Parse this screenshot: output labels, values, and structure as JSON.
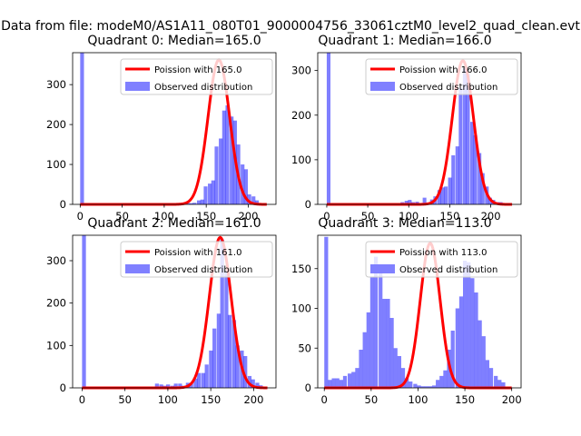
{
  "figure": {
    "suptitle": "Data from file: modeM0/AS1A11_080T01_9000004756_33061cztM0_level2_quad_clean.evt"
  },
  "chart_data": [
    {
      "type": "bar",
      "title": "Quadrant 0: Median=165.0",
      "xlabel": "",
      "ylabel": "",
      "xlim": [
        -9,
        233
      ],
      "ylim": [
        0,
        380
      ],
      "xticks": [
        0,
        50,
        100,
        150,
        200
      ],
      "yticks": [
        0,
        100,
        200,
        300
      ],
      "legend_position": "upper right",
      "legend": [
        {
          "label": "Poission with 165.0",
          "color": "#ff0000",
          "kind": "line"
        },
        {
          "label": "Observed distribution",
          "color": "#8080ff",
          "kind": "patch"
        }
      ],
      "histogram": {
        "name": "Observed distribution",
        "color": "#0000ff",
        "alpha": 0.5,
        "bin_width": 4.5,
        "bins": [
          [
            0,
            380
          ],
          [
            90,
            1
          ],
          [
            105,
            1
          ],
          [
            112,
            1
          ],
          [
            118,
            1
          ],
          [
            122,
            2
          ],
          [
            126,
            3
          ],
          [
            130,
            3
          ],
          [
            134,
            4
          ],
          [
            139,
            10
          ],
          [
            143,
            12
          ],
          [
            147,
            45
          ],
          [
            152,
            52
          ],
          [
            156,
            60
          ],
          [
            160,
            145
          ],
          [
            165,
            165
          ],
          [
            169,
            235
          ],
          [
            173,
            248
          ],
          [
            178,
            220
          ],
          [
            182,
            210
          ],
          [
            186,
            150
          ],
          [
            191,
            100
          ],
          [
            195,
            88
          ],
          [
            199,
            25
          ],
          [
            204,
            20
          ],
          [
            208,
            10
          ],
          [
            213,
            2
          ],
          [
            217,
            1
          ]
        ]
      },
      "poisson": {
        "name": "Poission with 165.0",
        "color": "#ff0000",
        "mean": 165.0,
        "peak": 362,
        "x_range": [
          0,
          222
        ]
      }
    },
    {
      "type": "bar",
      "title": "Quadrant 1: Median=166.0",
      "xlabel": "",
      "ylabel": "",
      "xlim": [
        -11,
        237
      ],
      "ylim": [
        0,
        340
      ],
      "xticks": [
        0,
        50,
        100,
        150,
        200
      ],
      "yticks": [
        0,
        100,
        200,
        300
      ],
      "legend_position": "upper right",
      "legend": [
        {
          "label": "Poission with 166.0",
          "color": "#ff0000",
          "kind": "line"
        },
        {
          "label": "Observed distribution",
          "color": "#8080ff",
          "kind": "patch"
        }
      ],
      "histogram": {
        "name": "Observed distribution",
        "color": "#0000ff",
        "alpha": 0.5,
        "bin_width": 4.5,
        "bins": [
          [
            0,
            340
          ],
          [
            90,
            5
          ],
          [
            95,
            8
          ],
          [
            99,
            10
          ],
          [
            103,
            5
          ],
          [
            108,
            6
          ],
          [
            112,
            3
          ],
          [
            117,
            15
          ],
          [
            121,
            4
          ],
          [
            126,
            11
          ],
          [
            130,
            18
          ],
          [
            135,
            32
          ],
          [
            139,
            38
          ],
          [
            143,
            40
          ],
          [
            148,
            60
          ],
          [
            152,
            110
          ],
          [
            157,
            130
          ],
          [
            161,
            260
          ],
          [
            166,
            305
          ],
          [
            170,
            292
          ],
          [
            175,
            185
          ],
          [
            179,
            155
          ],
          [
            184,
            115
          ],
          [
            188,
            70
          ],
          [
            193,
            40
          ],
          [
            197,
            15
          ],
          [
            201,
            10
          ],
          [
            206,
            5
          ],
          [
            210,
            5
          ],
          [
            215,
            1
          ]
        ]
      },
      "poisson": {
        "name": "Poission with 166.0",
        "color": "#ff0000",
        "mean": 166.0,
        "peak": 322,
        "x_range": [
          0,
          226
        ]
      }
    },
    {
      "type": "bar",
      "title": "Quadrant 2: Median=161.0",
      "xlabel": "",
      "ylabel": "",
      "xlim": [
        -11,
        226
      ],
      "ylim": [
        0,
        360
      ],
      "xticks": [
        0,
        50,
        100,
        150,
        200
      ],
      "yticks": [
        0,
        100,
        200,
        300
      ],
      "legend_position": "upper right",
      "legend": [
        {
          "label": "Poission with 161.0",
          "color": "#ff0000",
          "kind": "line"
        },
        {
          "label": "Observed distribution",
          "color": "#8080ff",
          "kind": "patch"
        }
      ],
      "histogram": {
        "name": "Observed distribution",
        "color": "#0000ff",
        "alpha": 0.5,
        "bin_width": 4.5,
        "bins": [
          [
            0,
            360
          ],
          [
            85,
            10
          ],
          [
            90,
            8
          ],
          [
            94,
            5
          ],
          [
            98,
            8
          ],
          [
            103,
            5
          ],
          [
            107,
            10
          ],
          [
            112,
            10
          ],
          [
            116,
            5
          ],
          [
            121,
            12
          ],
          [
            125,
            10
          ],
          [
            130,
            22
          ],
          [
            134,
            35
          ],
          [
            139,
            35
          ],
          [
            143,
            55
          ],
          [
            148,
            88
          ],
          [
            152,
            140
          ],
          [
            157,
            175
          ],
          [
            161,
            350
          ],
          [
            166,
            275
          ],
          [
            170,
            172
          ],
          [
            175,
            160
          ],
          [
            179,
            100
          ],
          [
            184,
            88
          ],
          [
            188,
            75
          ],
          [
            193,
            28
          ],
          [
            197,
            20
          ],
          [
            202,
            12
          ],
          [
            206,
            6
          ],
          [
            211,
            3
          ]
        ]
      },
      "poisson": {
        "name": "Poission with 161.0",
        "color": "#ff0000",
        "mean": 161.0,
        "peak": 355,
        "x_range": [
          0,
          216
        ]
      }
    },
    {
      "type": "bar",
      "title": "Quadrant 3: Median=113.0",
      "xlabel": "",
      "ylabel": "",
      "xlim": [
        -7,
        210
      ],
      "ylim": [
        0,
        192
      ],
      "xticks": [
        0,
        50,
        100,
        150,
        200
      ],
      "yticks": [
        0,
        50,
        100,
        150
      ],
      "legend_position": "upper right",
      "legend": [
        {
          "label": "Poission with 113.0",
          "color": "#ff0000",
          "kind": "line"
        },
        {
          "label": "Observed distribution",
          "color": "#8080ff",
          "kind": "patch"
        }
      ],
      "histogram": {
        "name": "Observed distribution",
        "color": "#0000ff",
        "alpha": 0.5,
        "bin_width": 4.1,
        "bins": [
          [
            0,
            190
          ],
          [
            4,
            10
          ],
          [
            8,
            12
          ],
          [
            12,
            12
          ],
          [
            16,
            10
          ],
          [
            20,
            15
          ],
          [
            25,
            18
          ],
          [
            29,
            20
          ],
          [
            33,
            25
          ],
          [
            37,
            48
          ],
          [
            41,
            70
          ],
          [
            45,
            95
          ],
          [
            49,
            140
          ],
          [
            53,
            165
          ],
          [
            58,
            145
          ],
          [
            62,
            112
          ],
          [
            66,
            112
          ],
          [
            70,
            88
          ],
          [
            74,
            50
          ],
          [
            78,
            40
          ],
          [
            82,
            25
          ],
          [
            86,
            12
          ],
          [
            90,
            8
          ],
          [
            95,
            5
          ],
          [
            99,
            3
          ],
          [
            103,
            2
          ],
          [
            107,
            2
          ],
          [
            111,
            2
          ],
          [
            115,
            3
          ],
          [
            119,
            10
          ],
          [
            123,
            15
          ],
          [
            127,
            22
          ],
          [
            131,
            48
          ],
          [
            135,
            72
          ],
          [
            140,
            100
          ],
          [
            144,
            115
          ],
          [
            148,
            160
          ],
          [
            152,
            158
          ],
          [
            156,
            138
          ],
          [
            160,
            120
          ],
          [
            164,
            85
          ],
          [
            168,
            65
          ],
          [
            172,
            35
          ],
          [
            176,
            25
          ],
          [
            181,
            15
          ],
          [
            185,
            10
          ],
          [
            189,
            7
          ],
          [
            193,
            1
          ]
        ]
      },
      "poisson": {
        "name": "Poission with 113.0",
        "color": "#ff0000",
        "mean": 113.0,
        "peak": 182,
        "x_range": [
          0,
          200
        ]
      }
    }
  ]
}
